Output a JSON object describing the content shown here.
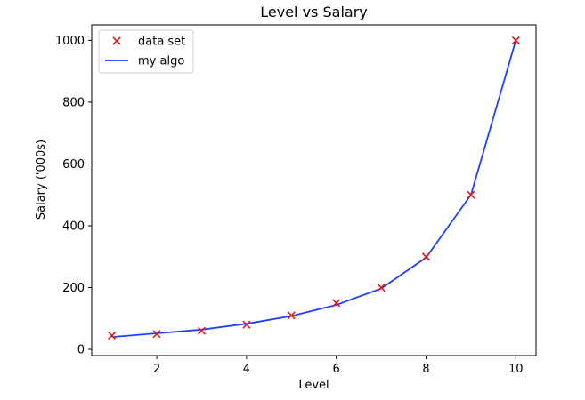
{
  "chart_data": {
    "type": "line",
    "title": "Level vs Salary",
    "xlabel": "Level",
    "ylabel": "Salary ('000s)",
    "xlim": [
      0.55,
      10.45
    ],
    "ylim": [
      -20,
      1050
    ],
    "xticks": [
      "2",
      "4",
      "6",
      "8",
      "10"
    ],
    "yticks": [
      "0",
      "200",
      "400",
      "600",
      "800",
      "1000"
    ],
    "legend": "top-left",
    "grid": false,
    "series": [
      {
        "name": "data set",
        "kind": "scatter",
        "marker": "x",
        "color": "#e31a1c",
        "x": [
          1,
          2,
          3,
          4,
          5,
          6,
          7,
          8,
          9,
          10
        ],
        "y": [
          45,
          50,
          60,
          80,
          110,
          150,
          200,
          300,
          500,
          1000
        ]
      },
      {
        "name": "my algo",
        "kind": "line",
        "color": "#1f3fff",
        "x": [
          1,
          2,
          3,
          4,
          5,
          6,
          7,
          8,
          9,
          10
        ],
        "y": [
          40,
          52,
          64,
          83,
          108,
          144,
          197,
          297,
          500,
          1000
        ]
      }
    ]
  }
}
